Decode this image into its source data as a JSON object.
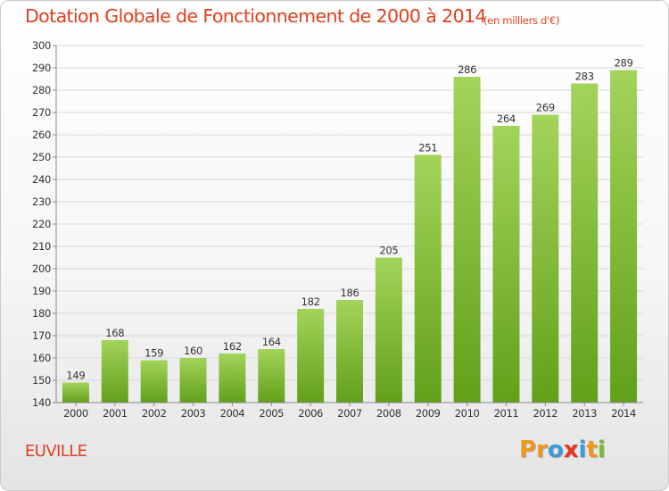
{
  "title": "Dotation Globale de Fonctionnement de 2000 à 2014",
  "unit_note": "(en milliers d'€)",
  "commune": "EUVILLE",
  "logo": {
    "text": "Proxiti",
    "letters": [
      "P",
      "r",
      "o",
      "x",
      "i",
      "t",
      "i"
    ],
    "colors": [
      "#f0961e",
      "#f0961e",
      "#3c9bd7",
      "#e6331c",
      "#3c9bd7",
      "#f0961e",
      "#7dbb2e"
    ]
  },
  "colors": {
    "title": "#e0401e",
    "bar_light": "#a3d45a",
    "bar_dark": "#62a01a",
    "grid": "#d8d8d8",
    "axis": "#888888",
    "text": "#333333"
  },
  "chart_data": {
    "type": "bar",
    "title": "Dotation Globale de Fonctionnement de 2000 à 2014",
    "subtitle": "(en milliers d'€)",
    "xlabel": "",
    "ylabel": "",
    "categories": [
      "2000",
      "2001",
      "2002",
      "2003",
      "2004",
      "2005",
      "2006",
      "2007",
      "2008",
      "2009",
      "2010",
      "2011",
      "2012",
      "2013",
      "2014"
    ],
    "values": [
      149,
      168,
      159,
      160,
      162,
      164,
      182,
      186,
      205,
      251,
      286,
      264,
      269,
      283,
      289
    ],
    "ylim": [
      140,
      300
    ],
    "yticks": [
      140,
      150,
      160,
      170,
      180,
      190,
      200,
      210,
      220,
      230,
      240,
      250,
      260,
      270,
      280,
      290,
      300
    ],
    "grid": true,
    "data_labels": true,
    "legend": "none"
  }
}
